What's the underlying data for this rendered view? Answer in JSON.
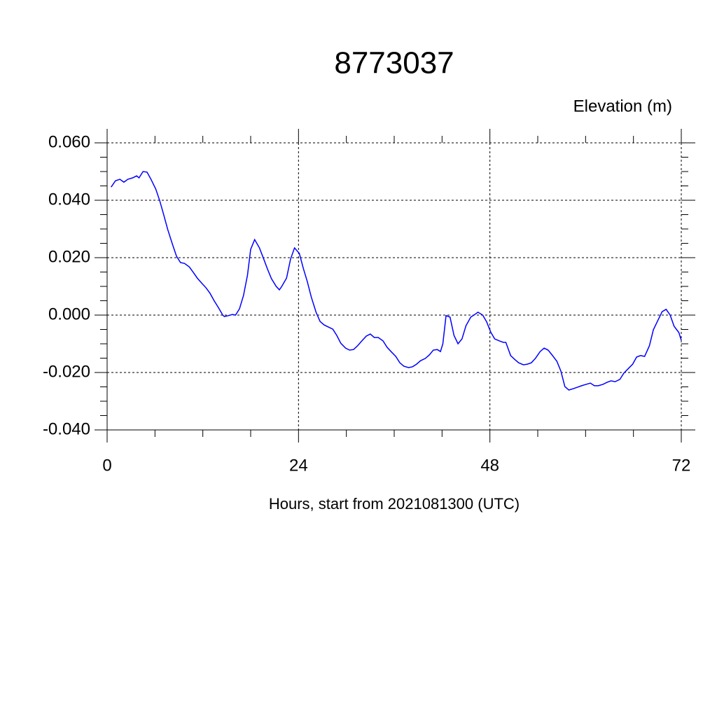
{
  "chart_data": {
    "type": "line",
    "title": "8773037",
    "ylabel": "Elevation (m)",
    "xlabel": "Hours, start from 2021081300 (UTC)",
    "x": [
      0.5,
      1.05,
      1.6,
      2.1,
      2.6,
      3.2,
      3.7,
      4.0,
      4.5,
      5.0,
      5.5,
      6.1,
      6.6,
      7.1,
      7.6,
      8.2,
      8.7,
      9.2,
      9.7,
      10.3,
      10.8,
      11.3,
      11.9,
      12.4,
      12.9,
      13.4,
      14.0,
      14.5,
      14.7,
      15.2,
      15.7,
      16.1,
      16.6,
      17.1,
      17.6,
      18.0,
      18.5,
      19.1,
      19.6,
      20.1,
      20.6,
      21.2,
      21.6,
      21.9,
      22.5,
      23.0,
      23.5,
      24.1,
      24.6,
      25.1,
      25.6,
      26.2,
      26.7,
      27.2,
      27.7,
      28.3,
      28.8,
      29.3,
      29.9,
      30.4,
      30.9,
      31.4,
      32.0,
      32.5,
      33.0,
      33.5,
      34.0,
      34.6,
      35.1,
      35.6,
      36.2,
      36.7,
      37.2,
      37.8,
      38.3,
      38.8,
      39.3,
      39.9,
      40.4,
      40.9,
      41.4,
      41.8,
      42.1,
      42.5,
      43.0,
      43.5,
      44.0,
      44.5,
      45.0,
      45.6,
      46.1,
      46.5,
      47.1,
      47.6,
      48.1,
      48.6,
      49.2,
      49.7,
      50.0,
      50.6,
      51.1,
      51.6,
      52.2,
      52.7,
      53.2,
      53.7,
      54.3,
      54.8,
      55.3,
      55.8,
      56.4,
      56.9,
      57.4,
      57.9,
      58.5,
      59.0,
      59.5,
      60.1,
      60.6,
      61.1,
      61.6,
      62.2,
      62.7,
      63.2,
      63.7,
      64.3,
      64.8,
      65.3,
      65.9,
      66.4,
      66.9,
      67.4,
      68.0,
      68.5,
      69.0,
      69.6,
      70.1,
      70.6,
      71.1,
      71.7,
      72.0
    ],
    "series": [
      {
        "color": "#0000ff",
        "values": [
          0.0446,
          0.0468,
          0.0473,
          0.0463,
          0.0473,
          0.0478,
          0.0485,
          0.0478,
          0.05,
          0.0498,
          0.0473,
          0.0439,
          0.0398,
          0.0349,
          0.0298,
          0.0246,
          0.0205,
          0.0183,
          0.018,
          0.0168,
          0.0149,
          0.0129,
          0.011,
          0.0095,
          0.0076,
          0.0051,
          0.0024,
          0.0,
          -0.0005,
          -0.0002,
          0.0002,
          0.0,
          0.0022,
          0.0068,
          0.0139,
          0.0229,
          0.0263,
          0.0234,
          0.0198,
          0.0161,
          0.0127,
          0.01,
          0.0088,
          0.01,
          0.0129,
          0.0195,
          0.0234,
          0.0215,
          0.0163,
          0.0117,
          0.0063,
          0.001,
          -0.0022,
          -0.0034,
          -0.0041,
          -0.0049,
          -0.0071,
          -0.0098,
          -0.0115,
          -0.0122,
          -0.012,
          -0.0107,
          -0.0088,
          -0.0073,
          -0.0066,
          -0.0078,
          -0.0078,
          -0.009,
          -0.0112,
          -0.0127,
          -0.0144,
          -0.0166,
          -0.0178,
          -0.0183,
          -0.018,
          -0.0171,
          -0.0159,
          -0.0151,
          -0.0139,
          -0.0122,
          -0.012,
          -0.0127,
          -0.01,
          -0.0002,
          -0.0007,
          -0.0071,
          -0.01,
          -0.0083,
          -0.0037,
          -0.0007,
          0.0002,
          0.001,
          0.0,
          -0.0024,
          -0.0059,
          -0.0083,
          -0.009,
          -0.0095,
          -0.0095,
          -0.0141,
          -0.0154,
          -0.0166,
          -0.0173,
          -0.0171,
          -0.0166,
          -0.0151,
          -0.0127,
          -0.0115,
          -0.0122,
          -0.0139,
          -0.0161,
          -0.0195,
          -0.0249,
          -0.0261,
          -0.0256,
          -0.0251,
          -0.0246,
          -0.0241,
          -0.0237,
          -0.0246,
          -0.0246,
          -0.0241,
          -0.0234,
          -0.0229,
          -0.0232,
          -0.0224,
          -0.0202,
          -0.0188,
          -0.0171,
          -0.0146,
          -0.0141,
          -0.0144,
          -0.0107,
          -0.0051,
          -0.0022,
          0.0012,
          0.002,
          0.0,
          -0.0039,
          -0.0061,
          -0.0088
        ]
      }
    ],
    "xlim": [
      0,
      72
    ],
    "xticks": [
      0,
      24,
      48,
      72
    ],
    "ylim": [
      -0.04,
      0.06
    ],
    "yticks": [
      {
        "value": -0.04,
        "label": "-0.040"
      },
      {
        "value": -0.02,
        "label": "-0.020"
      },
      {
        "value": 0,
        "label": "0.000"
      },
      {
        "value": 0.02,
        "label": "0.020"
      },
      {
        "value": 0.04,
        "label": "0.040"
      },
      {
        "value": 0.06,
        "label": "0.060"
      }
    ],
    "grid": true
  }
}
